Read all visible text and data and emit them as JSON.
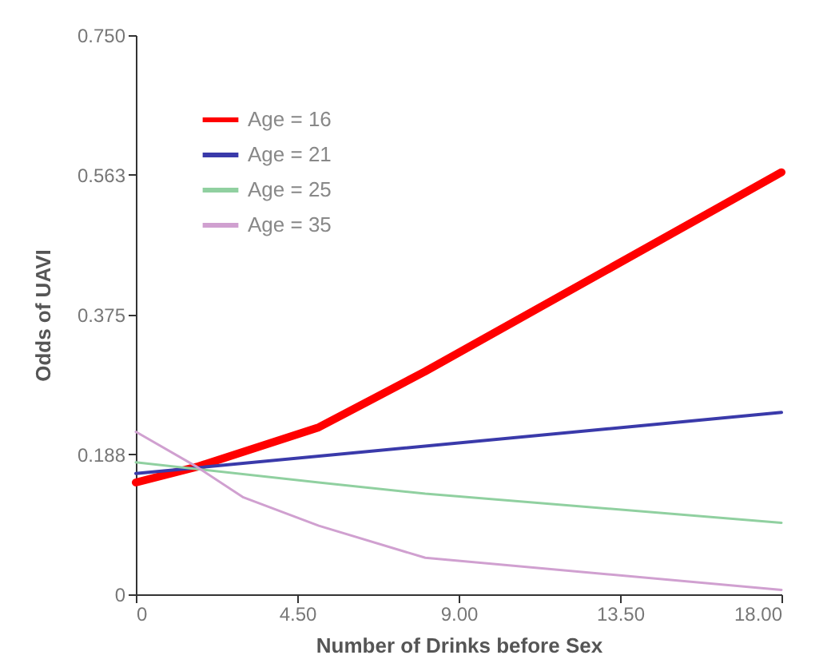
{
  "chart_data": {
    "type": "line",
    "xlabel": "Number of Drinks before Sex",
    "ylabel": "Odds of UAVI",
    "xlim": [
      0,
      18
    ],
    "xticks": [
      0,
      {
        "value": 4.5,
        "label": "4.50"
      },
      {
        "value": 9,
        "label": "9.00"
      },
      {
        "value": 13.5,
        "label": "13.50"
      },
      {
        "value": 18,
        "label": "18.00"
      }
    ],
    "ylim": [
      0,
      0.75
    ],
    "yticks": [
      0,
      0.188,
      0.375,
      0.563,
      {
        "value": 0.75,
        "label": "0.750"
      }
    ],
    "grid": false,
    "legend": "top left",
    "marker": "none",
    "line_style": "solid",
    "series": [
      {
        "name": "Age = 16",
        "color": "#ff0000",
        "x": [
          0,
          1.7,
          5.1,
          8.07,
          18
        ],
        "values": [
          0.15,
          0.171,
          0.224,
          0.299,
          0.566
        ]
      },
      {
        "name": "Age = 21",
        "color": "#3a3aaa",
        "x": [
          0,
          18
        ],
        "values": [
          0.162,
          0.244
        ]
      },
      {
        "name": "Age = 25",
        "color": "#90d0a0",
        "x": [
          0,
          5.1,
          8.07,
          18
        ],
        "values": [
          0.177,
          0.15,
          0.135,
          0.096
        ]
      },
      {
        "name": "Age = 35",
        "color": "#d0a0d0",
        "x": [
          0,
          1.7,
          3.0,
          5.1,
          8.07,
          18
        ],
        "values": [
          0.218,
          0.171,
          0.13,
          0.092,
          0.049,
          0.006
        ]
      }
    ]
  }
}
